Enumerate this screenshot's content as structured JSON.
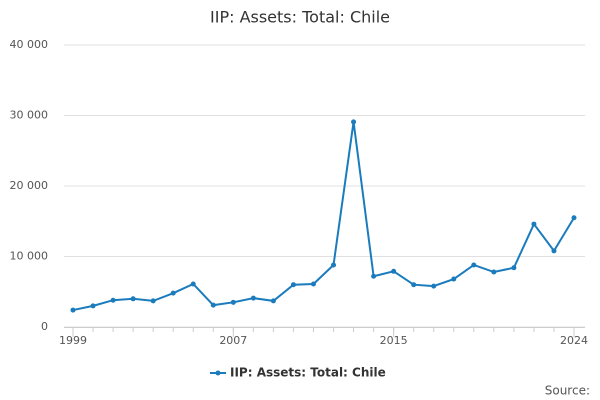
{
  "chart_data": {
    "type": "line",
    "title": "IIP: Assets: Total: Chile",
    "x": [
      1999,
      2000,
      2001,
      2002,
      2003,
      2004,
      2005,
      2006,
      2007,
      2008,
      2009,
      2010,
      2011,
      2012,
      2013,
      2014,
      2015,
      2016,
      2017,
      2018,
      2019,
      2020,
      2021,
      2022,
      2023,
      2024
    ],
    "series": [
      {
        "name": "IIP: Assets: Total: Chile",
        "color": "#1a7bbd",
        "values": [
          2400,
          3000,
          3800,
          4000,
          3700,
          4800,
          6100,
          3100,
          3500,
          4100,
          3700,
          6000,
          6100,
          8800,
          29100,
          7200,
          7900,
          6000,
          5800,
          6800,
          8800,
          7800,
          8400,
          14600,
          10800,
          15500
        ]
      }
    ],
    "xlim": [
      1999,
      2024
    ],
    "xticks": [
      1999,
      2007,
      2015,
      2024
    ],
    "ylim": [
      0,
      40000
    ],
    "yticks": [
      0,
      {
        "value": 10000,
        "label": "10 000"
      },
      {
        "value": 20000,
        "label": "20 000"
      },
      {
        "value": 30000,
        "label": "30 000"
      },
      {
        "value": 40000,
        "label": "40 000"
      }
    ],
    "grid": true,
    "legend": "bottom",
    "source": "Source:"
  }
}
